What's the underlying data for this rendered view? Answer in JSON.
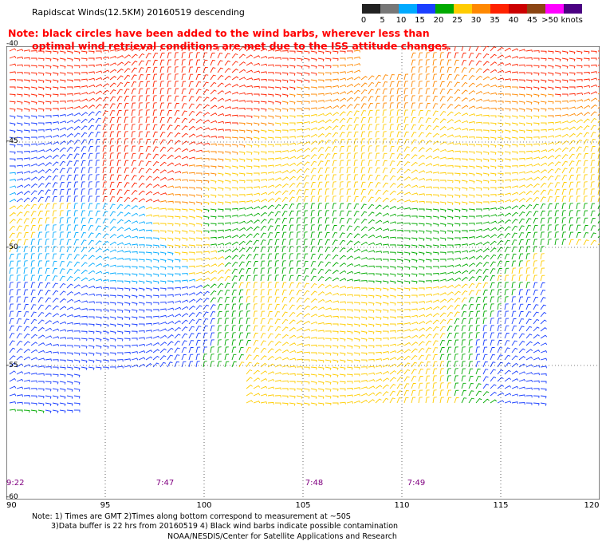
{
  "header": {
    "title": "Rapidscat Winds(12.5KM) 20160519 descending",
    "note_line1": "Note: black circles have been added to the wind barbs, wherever less than",
    "note_line2": "optimal wind retrieval conditions are met due to the ISS attitude changes."
  },
  "legend": {
    "labels": [
      "0",
      "5",
      "10",
      "15",
      "20",
      "25",
      "30",
      "35",
      "40",
      "45",
      ">50 knots"
    ],
    "colors": [
      "#222222",
      "#777777",
      "#00aaff",
      "#1a3fff",
      "#00aa00",
      "#ffcc00",
      "#ff8800",
      "#ff2200",
      "#cc0000",
      "#8b4513",
      "#ff00ff",
      "#4b0082"
    ]
  },
  "axes": {
    "x_ticks": [
      "90",
      "95",
      "100",
      "105",
      "110",
      "115",
      "120"
    ],
    "y_ticks": [
      "-40",
      "-45",
      "-50",
      "-55",
      "-60"
    ]
  },
  "times": [
    "9:22",
    "7:47",
    "7:48",
    "7:49"
  ],
  "footer": {
    "line1": "Note: 1) Times are GMT 2)Times along bottom correspond to measurement at ~50S",
    "line2": "3)Data buffer is 22 hrs from 20160519 4) Black wind barbs indicate possible contamination",
    "line3": "NOAA/NESDIS/Center for Satellite Applications and Research"
  }
}
